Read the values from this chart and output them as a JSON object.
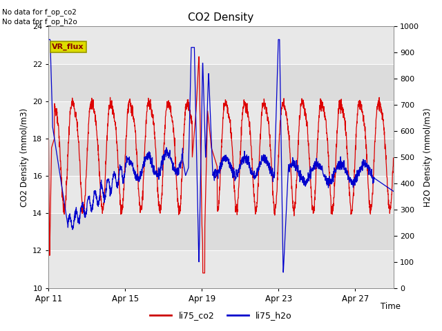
{
  "title": "CO2 Density",
  "xlabel": "Time",
  "ylabel_left": "CO2 Density (mmol/m3)",
  "ylabel_right": "H2O Density (mmol/m3)",
  "ylim_left": [
    10,
    24
  ],
  "ylim_right": [
    0,
    1000
  ],
  "xtick_labels": [
    "Apr 11",
    "Apr 15",
    "Apr 19",
    "Apr 23",
    "Apr 27"
  ],
  "xtick_positions": [
    0,
    4,
    8,
    12,
    16
  ],
  "top_text1": "No data for f_op_co2",
  "top_text2": "No data for f_op_h2o",
  "vr_flux_label": "VR_flux",
  "legend_labels": [
    "li75_co2",
    "li75_h2o"
  ],
  "legend_colors": [
    "#cc0000",
    "#0000cc"
  ],
  "background_color": "#ffffff",
  "plot_bg_color": "#e8e8e8",
  "red_color": "#dd0000",
  "blue_color": "#0000cc",
  "vr_flux_bg": "#dddd00",
  "vr_flux_border": "#999900",
  "band_color": "#d8d8d8",
  "band_positions": [
    10,
    12,
    14,
    16,
    18,
    20,
    22,
    24
  ]
}
